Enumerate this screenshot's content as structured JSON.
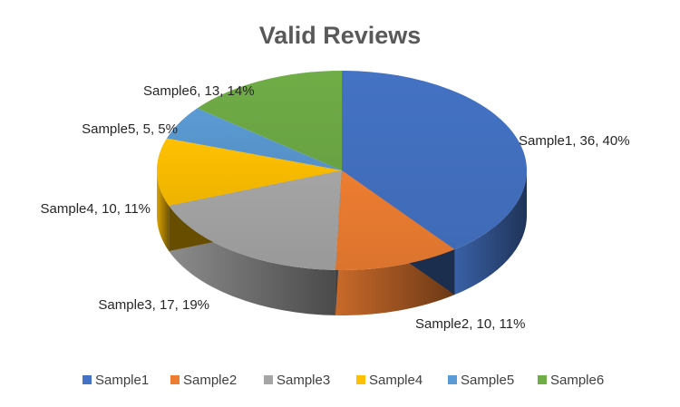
{
  "chart_data": {
    "type": "pie",
    "style": "3d",
    "title": "Valid Reviews",
    "slices": [
      {
        "name": "Sample1",
        "value": 36,
        "percent": "40%",
        "label": "Sample1, 36, 40%",
        "color": "#4472C4"
      },
      {
        "name": "Sample2",
        "value": 10,
        "percent": "11%",
        "label": "Sample2, 10, 11%",
        "color": "#ED7D31"
      },
      {
        "name": "Sample3",
        "value": 17,
        "percent": "19%",
        "label": "Sample3, 17, 19%",
        "color": "#A5A5A5"
      },
      {
        "name": "Sample4",
        "value": 10,
        "percent": "11%",
        "label": "Sample4, 10, 11%",
        "color": "#FFC000"
      },
      {
        "name": "Sample5",
        "value": 5,
        "percent": "5%",
        "label": "Sample5, 5, 5%",
        "color": "#5B9BD5"
      },
      {
        "name": "Sample6",
        "value": 13,
        "percent": "14%",
        "label": "Sample6, 13, 14%",
        "color": "#70AD47"
      }
    ],
    "legend": {
      "position": "bottom",
      "entries": [
        "Sample1",
        "Sample2",
        "Sample3",
        "Sample4",
        "Sample5",
        "Sample6"
      ]
    }
  }
}
